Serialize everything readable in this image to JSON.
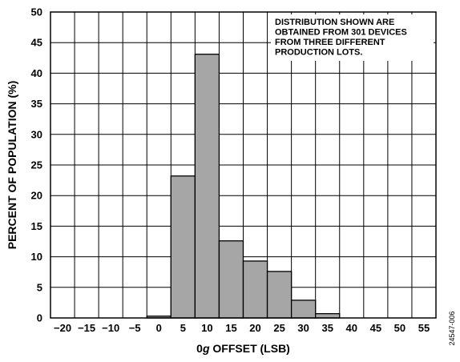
{
  "chart_data": {
    "type": "bar",
    "xlabel_prefix": "0",
    "xlabel_italic": "g",
    "xlabel_suffix": " OFFSET (LSB)",
    "ylabel": "PERCENT OF POPULATION (%)",
    "ylim": [
      0,
      50
    ],
    "yticks": [
      "0",
      "5",
      "10",
      "15",
      "20",
      "25",
      "30",
      "35",
      "40",
      "45",
      "50"
    ],
    "xticks": [
      "−20",
      "−15",
      "−10",
      "−5",
      "0",
      "5",
      "10",
      "15",
      "20",
      "25",
      "30",
      "35",
      "40",
      "45",
      "50",
      "55"
    ],
    "bins": [
      "0",
      "5",
      "10",
      "15",
      "20",
      "25",
      "30",
      "35"
    ],
    "values": [
      0.3,
      23.2,
      43.1,
      12.6,
      9.3,
      7.6,
      2.9,
      0.7
    ],
    "grid": true,
    "bar_color": "#a6a6a6",
    "annotation": [
      "DISTRIBUTION SHOWN ARE",
      "OBTAINED FROM 301 DEVICES",
      "FROM THREE DIFFERENT",
      "PRODUCTION LOTS."
    ],
    "figure_id": "24547-006"
  }
}
